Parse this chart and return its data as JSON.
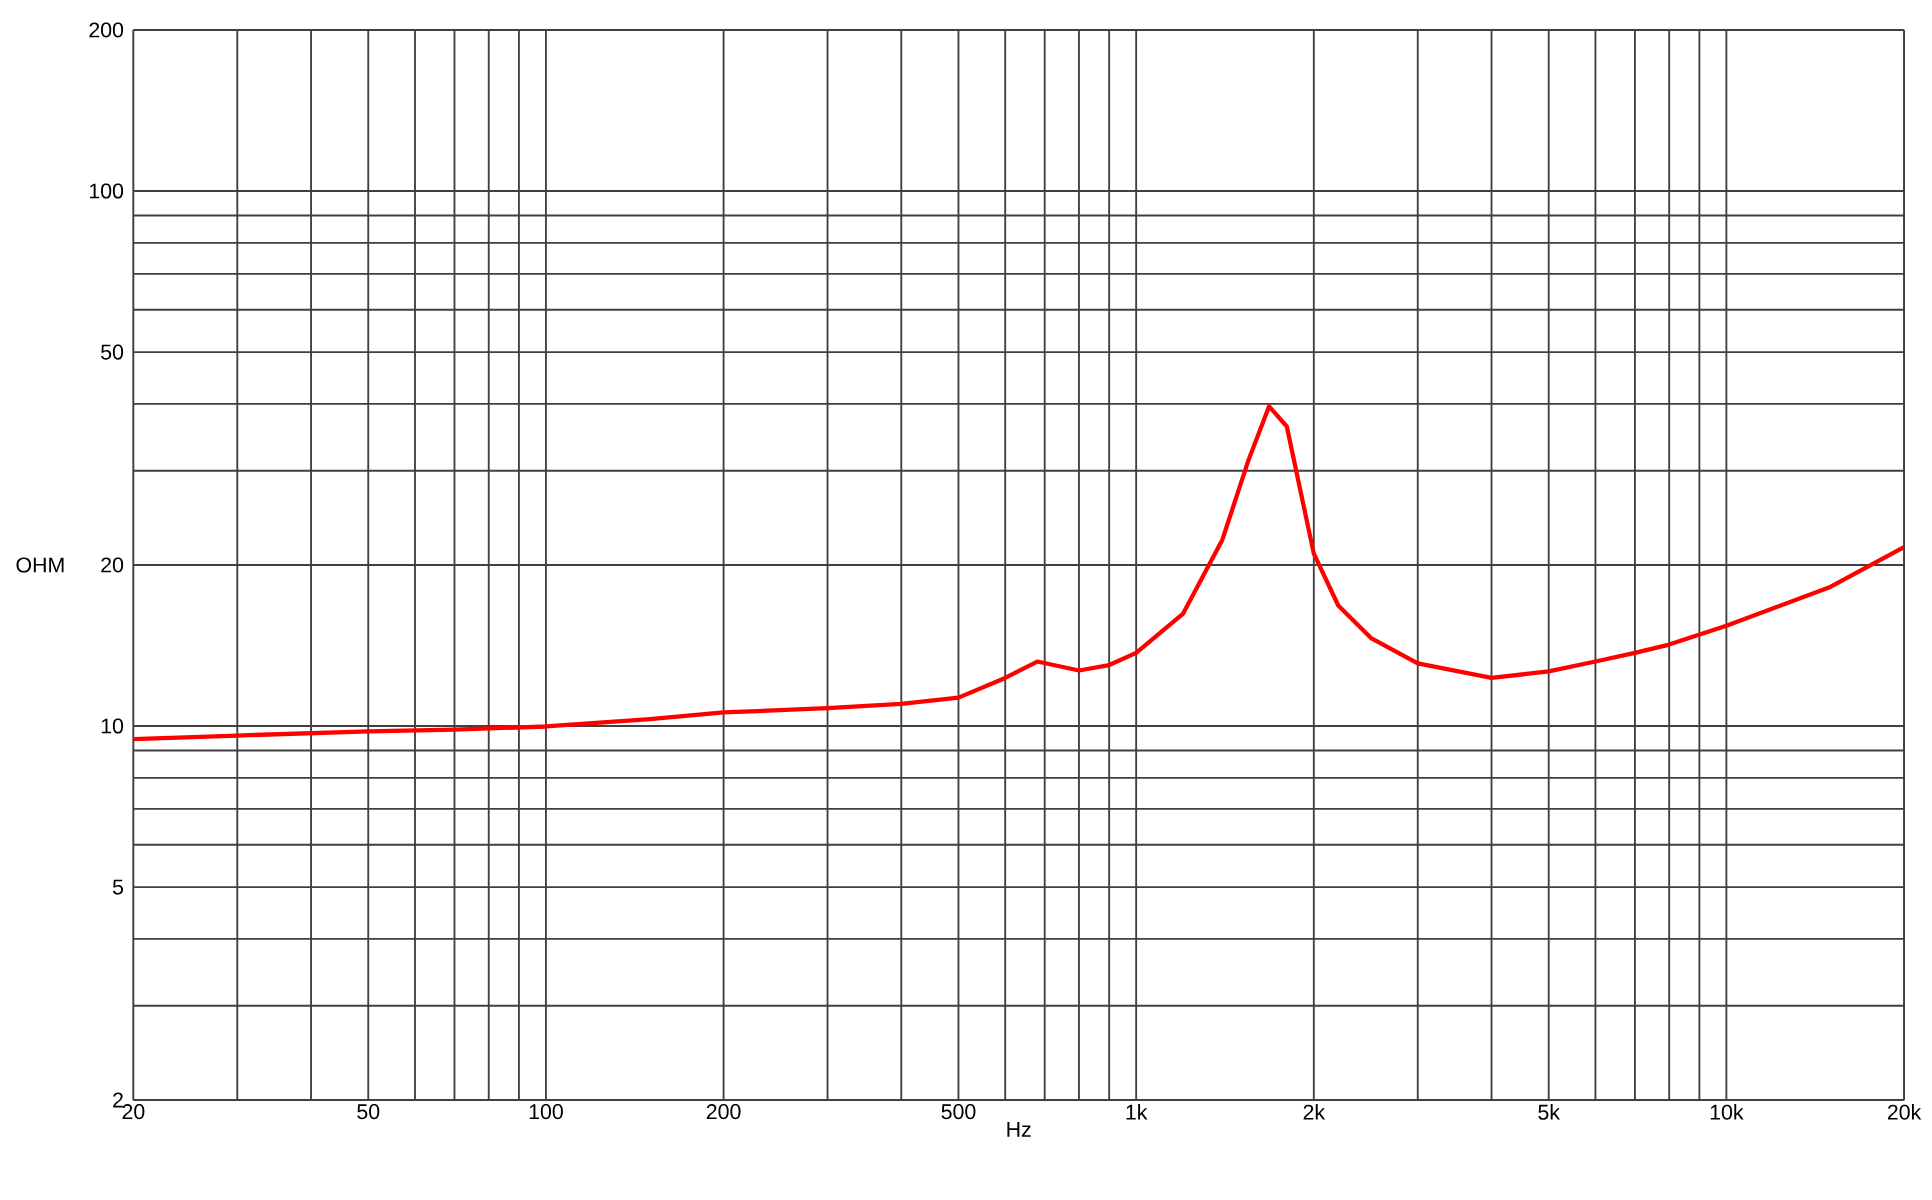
{
  "chart_data": {
    "type": "line",
    "xlabel": "Hz",
    "ylabel": "OHM",
    "log": "xy",
    "grid": true,
    "color": "#ff0000",
    "x": [
      20,
      30,
      50,
      70,
      100,
      150,
      200,
      300,
      400,
      500,
      600,
      680,
      800,
      900,
      1000,
      1200,
      1400,
      1550,
      1680,
      1800,
      2000,
      2200,
      2500,
      3000,
      4000,
      5000,
      6000,
      7000,
      8000,
      10000,
      15000,
      20000
    ],
    "values": [
      9.45,
      9.6,
      9.77,
      9.85,
      9.98,
      10.3,
      10.6,
      10.8,
      11.0,
      11.3,
      12.3,
      13.2,
      12.7,
      13.0,
      13.7,
      16.2,
      22.3,
      31.4,
      39.6,
      36.3,
      21.0,
      16.8,
      14.6,
      13.1,
      12.3,
      12.65,
      13.2,
      13.7,
      14.2,
      15.4,
      18.2,
      21.6
    ],
    "xlim": [
      20,
      20000
    ],
    "ylim": [
      2,
      200
    ],
    "xticks": [
      20,
      {
        "value": 30,
        "label": null
      },
      {
        "value": 40,
        "label": null
      },
      50,
      {
        "value": 60,
        "label": null
      },
      {
        "value": 70,
        "label": null
      },
      {
        "value": 80,
        "label": null
      },
      {
        "value": 90,
        "label": null
      },
      100,
      200,
      {
        "value": 300,
        "label": null
      },
      {
        "value": 400,
        "label": null
      },
      500,
      {
        "value": 600,
        "label": null
      },
      {
        "value": 700,
        "label": null
      },
      {
        "value": 800,
        "label": null
      },
      {
        "value": 900,
        "label": null
      },
      {
        "value": 1000,
        "label": "1k"
      },
      {
        "value": 2000,
        "label": "2k"
      },
      {
        "value": 3000,
        "label": null
      },
      {
        "value": 4000,
        "label": null
      },
      {
        "value": 5000,
        "label": "5k"
      },
      {
        "value": 6000,
        "label": null
      },
      {
        "value": 7000,
        "label": null
      },
      {
        "value": 8000,
        "label": null
      },
      {
        "value": 9000,
        "label": null
      },
      {
        "value": 10000,
        "label": "10k"
      },
      {
        "value": 20000,
        "label": "20k"
      }
    ],
    "yticks": [
      2,
      {
        "value": 3,
        "label": null
      },
      {
        "value": 4,
        "label": null
      },
      5,
      {
        "value": 6,
        "label": null
      },
      {
        "value": 7,
        "label": null
      },
      {
        "value": 8,
        "label": null
      },
      {
        "value": 9,
        "label": null
      },
      10,
      20,
      {
        "value": 30,
        "label": null
      },
      {
        "value": 40,
        "label": null
      },
      50,
      {
        "value": 60,
        "label": null
      },
      {
        "value": 70,
        "label": null
      },
      {
        "value": 80,
        "label": null
      },
      {
        "value": 90,
        "label": null
      },
      100,
      200
    ]
  }
}
